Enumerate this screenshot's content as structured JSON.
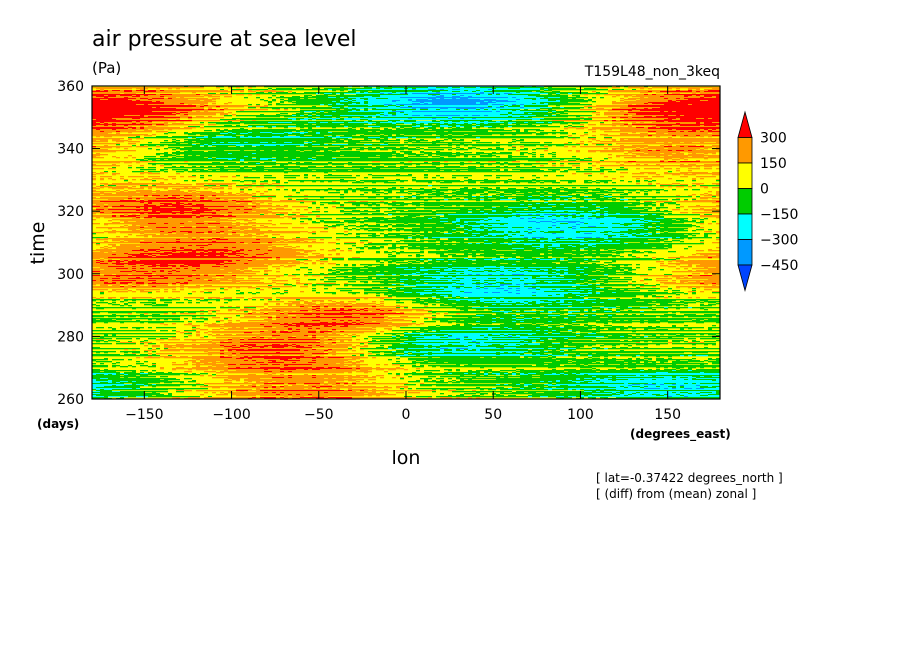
{
  "chart_data": {
    "type": "heatmap",
    "title": "air pressure at sea level",
    "units": "(Pa)",
    "experiment": "T159L48_non_3keq",
    "xlabel": "lon",
    "x_units": "(degrees_east)",
    "ylabel": "time",
    "y_units": "(days)",
    "xlim": [
      -180,
      180
    ],
    "ylim": [
      260,
      360
    ],
    "x_ticks": [
      -150,
      -100,
      -50,
      0,
      50,
      100,
      150
    ],
    "y_ticks": [
      260,
      280,
      300,
      320,
      340,
      360
    ],
    "legend": {
      "placement": "right",
      "labels": [
        "300",
        "150",
        "0",
        "-150",
        "-300",
        "-450"
      ],
      "bins": [
        {
          "range": "> 300",
          "color": "#ff0000"
        },
        {
          "range": "150 to 300",
          "color": "#ff9900"
        },
        {
          "range": "0 to 150",
          "color": "#ffff00"
        },
        {
          "range": "-150 to 0",
          "color": "#00cc00"
        },
        {
          "range": "-300 to -150",
          "color": "#00ffff"
        },
        {
          "range": "-450 to -300",
          "color": "#0099ff"
        },
        {
          "range": "< -450",
          "color": "#0044ff"
        }
      ]
    },
    "annotations": [
      "[ lat=-0.37422 degrees_north ]",
      "[ (diff) from (mean) zonal ]"
    ],
    "anomaly_features": [
      {
        "lon": -155,
        "time": 352,
        "value": 280
      },
      {
        "lon": -135,
        "time": 321,
        "value": 330
      },
      {
        "lon": -30,
        "time": 286,
        "value": 350
      },
      {
        "lon": -70,
        "time": 275,
        "value": 280
      },
      {
        "lon": -60,
        "time": 263,
        "value": 250
      },
      {
        "lon": -110,
        "time": 307,
        "value": 250
      },
      {
        "lon": -160,
        "time": 300,
        "value": 230
      },
      {
        "lon": 160,
        "time": 352,
        "value": 280
      },
      {
        "lon": 160,
        "time": 338,
        "value": 200
      },
      {
        "lon": 30,
        "time": 355,
        "value": -330
      },
      {
        "lon": 90,
        "time": 315,
        "value": -260
      },
      {
        "lon": 50,
        "time": 296,
        "value": -260
      },
      {
        "lon": 20,
        "time": 279,
        "value": -300
      },
      {
        "lon": 150,
        "time": 263,
        "value": -200
      },
      {
        "lon": -100,
        "time": 343,
        "value": -150
      }
    ]
  }
}
